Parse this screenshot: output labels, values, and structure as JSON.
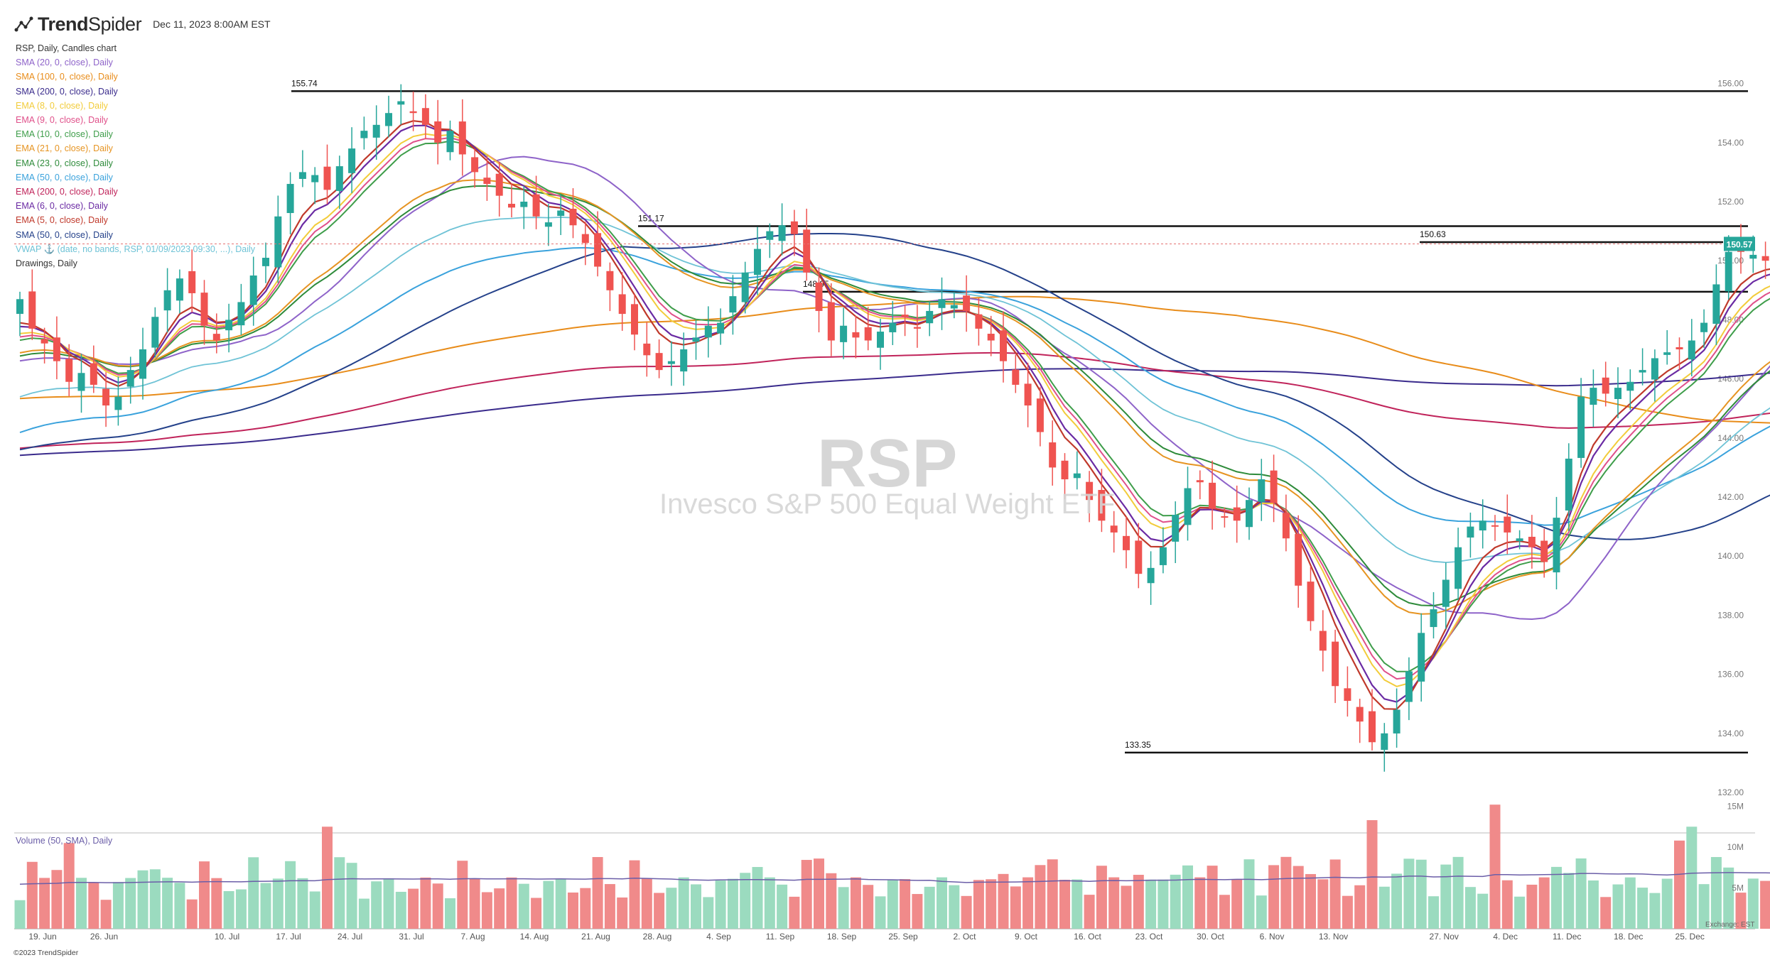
{
  "header": {
    "brand_bold": "Trend",
    "brand_light": "Spider",
    "datetime": "Dec 11, 2023 8:00AM EST",
    "chart_title": "RSP, Daily, Candles chart"
  },
  "legend": [
    {
      "label": "SMA (20, 0, close), Daily",
      "color": "#8e63c9"
    },
    {
      "label": "SMA (100, 0, close), Daily",
      "color": "#e88c1a"
    },
    {
      "label": "SMA (200, 0, close), Daily",
      "color": "#3a2b8c"
    },
    {
      "label": "EMA (8, 0, close), Daily",
      "color": "#f2cc3a"
    },
    {
      "label": "EMA (9, 0, close), Daily",
      "color": "#e0508a"
    },
    {
      "label": "EMA (10, 0, close), Daily",
      "color": "#3e9d4a"
    },
    {
      "label": "EMA (21, 0, close), Daily",
      "color": "#e69422"
    },
    {
      "label": "EMA (23, 0, close), Daily",
      "color": "#2e8b3a"
    },
    {
      "label": "EMA (50, 0, close), Daily",
      "color": "#3aa2dc"
    },
    {
      "label": "EMA (200, 0, close), Daily",
      "color": "#c0235a"
    },
    {
      "label": "EMA (6, 0, close), Daily",
      "color": "#6a2aa3"
    },
    {
      "label": "EMA (5, 0, close), Daily",
      "color": "#c0392b"
    },
    {
      "label": "SMA (50, 0, close), Daily",
      "color": "#24418a"
    },
    {
      "label": "VWAP ⚓ (date, no bands, RSP, 01/09/2023 09:30, ...), Daily",
      "color": "#6fc3d6"
    },
    {
      "label": "Drawings, Daily",
      "color": "#333333"
    }
  ],
  "watermark": {
    "ticker": "RSP",
    "name": "Invesco S&P 500 Equal Weight ETF"
  },
  "volume_label": "Volume (50, SMA), Daily",
  "exchange": "Exchange: EST",
  "copyright": "©2023 TrendSpider",
  "price_tag": "150.57",
  "colors": {
    "up": "#26a69a",
    "down": "#ef5350",
    "up_vol": "#9bdbbf",
    "down_vol": "#f08a8a"
  },
  "chart_data": {
    "type": "candlestick",
    "price_range": [
      131,
      156.5
    ],
    "y_ticks": [
      "132.00",
      "134.00",
      "136.00",
      "138.00",
      "140.00",
      "142.00",
      "144.00",
      "146.00",
      "148.00",
      "150.00",
      "152.00",
      "154.00",
      "156.00"
    ],
    "x_ticks": [
      "19. Jun",
      "26. Jun",
      "10. Jul",
      "17. Jul",
      "24. Jul",
      "31. Jul",
      "7. Aug",
      "14. Aug",
      "21. Aug",
      "28. Aug",
      "4. Sep",
      "11. Sep",
      "18. Sep",
      "25. Sep",
      "2. Oct",
      "9. Oct",
      "16. Oct",
      "23. Oct",
      "30. Oct",
      "6. Nov",
      "13. Nov",
      "27. Nov",
      "4. Dec",
      "11. Dec",
      "18. Dec",
      "25. Dec"
    ],
    "volume_ticks": [
      "5M",
      "10M",
      "15M"
    ],
    "horizontal_levels": [
      {
        "label": "155.74",
        "value": 155.74
      },
      {
        "label": "151.17",
        "value": 151.17
      },
      {
        "label": "150.63",
        "value": 150.63
      },
      {
        "label": "148.95",
        "value": 148.95
      },
      {
        "label": "133.35",
        "value": 133.35
      }
    ],
    "closes": [
      148.7,
      147.7,
      147.2,
      146.6,
      145.9,
      146.2,
      145.8,
      145.1,
      145.4,
      146.3,
      147.0,
      148.1,
      149.0,
      149.4,
      148.9,
      147.8,
      147.3,
      148.0,
      148.6,
      149.5,
      150.1,
      151.5,
      152.6,
      153.0,
      152.9,
      152.4,
      153.2,
      153.8,
      154.4,
      154.6,
      155.0,
      155.4,
      155.0,
      154.6,
      154.0,
      154.4,
      153.6,
      153.0,
      152.6,
      152.2,
      151.8,
      152.0,
      151.5,
      151.3,
      151.7,
      151.2,
      150.6,
      149.8,
      149.0,
      148.2,
      147.5,
      146.8,
      146.3,
      146.6,
      147.0,
      147.4,
      147.8,
      147.9,
      148.8,
      149.6,
      150.4,
      151.0,
      151.2,
      150.9,
      149.6,
      148.3,
      147.3,
      147.8,
      147.4,
      147.3,
      147.6,
      147.9,
      148.1,
      147.7,
      148.3,
      148.7,
      148.5,
      148.3,
      147.7,
      147.3,
      146.6,
      145.8,
      145.1,
      144.2,
      143.0,
      142.6,
      142.8,
      141.9,
      141.2,
      140.8,
      140.2,
      139.4,
      139.6,
      140.3,
      141.4,
      142.3,
      142.5,
      141.6,
      141.3,
      141.2,
      141.9,
      142.6,
      141.8,
      140.6,
      139.0,
      137.8,
      136.8,
      135.6,
      135.1,
      134.4,
      133.7,
      134.0,
      134.8,
      136.1,
      137.4,
      138.2,
      139.2,
      140.3,
      141.0,
      141.2,
      141.0,
      140.8,
      140.6,
      140.3,
      139.8,
      141.3,
      143.3,
      145.4,
      145.7,
      145.5,
      145.7,
      145.9,
      146.3,
      146.7,
      146.9,
      147.0,
      147.3,
      147.9,
      149.2,
      150.3,
      150.3,
      150.2,
      150.0,
      149.9,
      150.57
    ]
  }
}
